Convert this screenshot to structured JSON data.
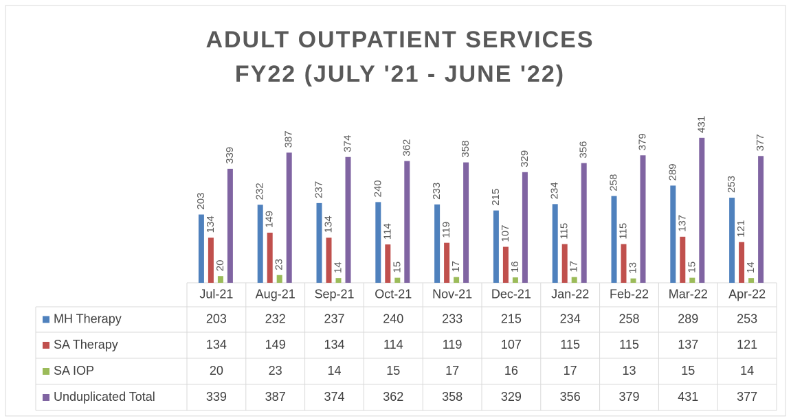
{
  "chart_data": {
    "type": "bar",
    "title": "ADULT OUTPATIENT SERVICES",
    "subtitle": "FY22 (JULY '21 - JUNE '22)",
    "categories": [
      "Jul-21",
      "Aug-21",
      "Sep-21",
      "Oct-21",
      "Nov-21",
      "Dec-21",
      "Jan-22",
      "Feb-22",
      "Mar-22",
      "Apr-22"
    ],
    "series": [
      {
        "name": "MH Therapy",
        "color": "#4f81bd",
        "values": [
          203,
          232,
          237,
          240,
          233,
          215,
          234,
          258,
          289,
          253
        ]
      },
      {
        "name": "SA Therapy",
        "color": "#c0504d",
        "values": [
          134,
          149,
          134,
          114,
          119,
          107,
          115,
          115,
          137,
          121
        ]
      },
      {
        "name": "SA IOP",
        "color": "#9bbb59",
        "values": [
          20,
          23,
          14,
          15,
          17,
          16,
          17,
          13,
          15,
          14
        ]
      },
      {
        "name": "Unduplicated Total",
        "color": "#8064a2",
        "values": [
          339,
          387,
          374,
          362,
          358,
          329,
          356,
          379,
          431,
          377
        ]
      }
    ]
  }
}
